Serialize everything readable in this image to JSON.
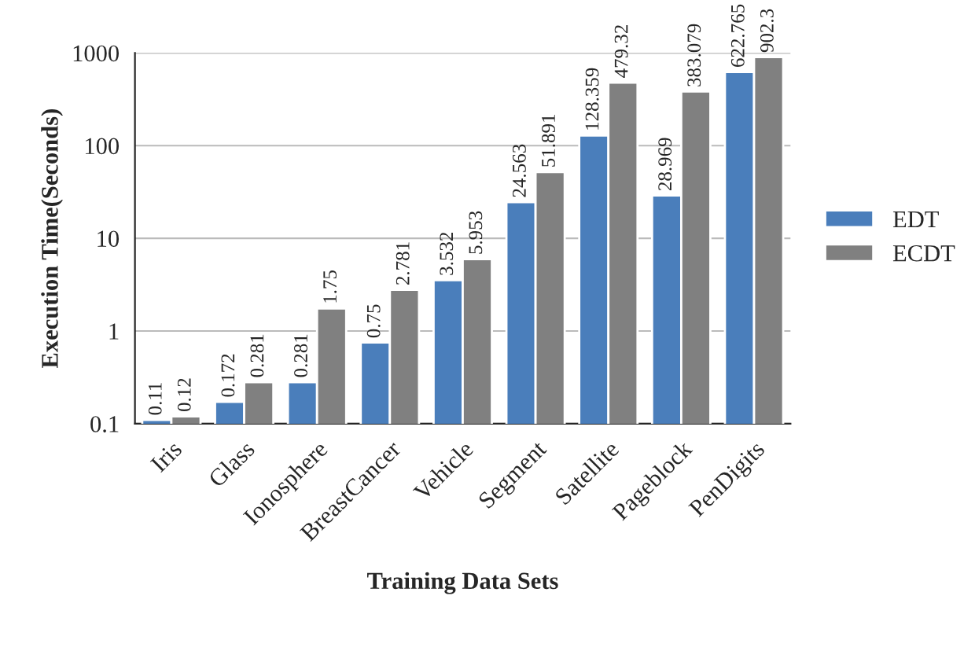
{
  "chart_data": {
    "type": "bar",
    "xlabel": "Training Data Sets",
    "ylabel": "Execution Time(Seconds)",
    "categories": [
      "Iris",
      "Glass",
      "Ionosphere",
      "BreastCancer",
      "Vehicle",
      "Segment",
      "Satellite",
      "Pageblock",
      "PenDigits"
    ],
    "series": [
      {
        "name": "EDT",
        "color": "#4a7ebb",
        "values": [
          0.11,
          0.172,
          0.281,
          0.75,
          3.532,
          24.563,
          128.359,
          28.969,
          622.765
        ]
      },
      {
        "name": "ECDT",
        "color": "#808080",
        "values": [
          0.12,
          0.281,
          1.75,
          2.781,
          5.953,
          51.891,
          479.32,
          383.079,
          902.3
        ]
      }
    ],
    "log": true,
    "ylim": [
      0.1,
      1000
    ],
    "yticks": [
      0.1,
      1,
      10,
      100,
      1000
    ],
    "grid": "y",
    "legend": "right",
    "data_labels": true
  }
}
